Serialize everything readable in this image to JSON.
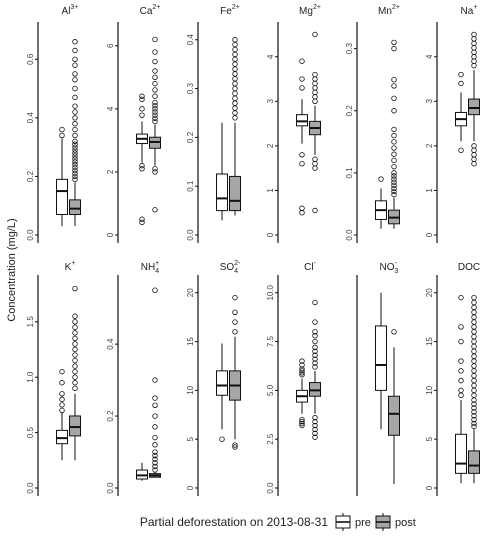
{
  "chart_data": {
    "type": "boxplot",
    "title": "",
    "ylabel": "Concentration (mg/L)",
    "legend": {
      "title": "Partial deforestation on 2013-08-31",
      "position": "bottom",
      "entries": [
        {
          "name": "pre",
          "color": "#ffffff"
        },
        {
          "name": "post",
          "color": "#a6a6a6"
        }
      ]
    },
    "panels": [
      {
        "label": "Al",
        "sup": "3+",
        "ylim": [
          0,
          0.7
        ],
        "ticks": [
          0,
          0.2,
          0.4,
          0.6
        ],
        "pre": {
          "min": 0.03,
          "q1": 0.07,
          "median": 0.15,
          "q3": 0.19,
          "max": 0.33,
          "outliers": [
            0.34,
            0.36
          ]
        },
        "post": {
          "min": 0.03,
          "q1": 0.07,
          "median": 0.09,
          "q3": 0.12,
          "max": 0.18,
          "outliers": [
            0.19,
            0.2,
            0.21,
            0.22,
            0.23,
            0.24,
            0.25,
            0.26,
            0.27,
            0.28,
            0.29,
            0.3,
            0.31,
            0.32,
            0.34,
            0.36,
            0.38,
            0.4,
            0.42,
            0.44,
            0.47,
            0.5,
            0.53,
            0.55,
            0.58,
            0.6,
            0.63,
            0.66
          ]
        }
      },
      {
        "label": "Ca",
        "sup": "2+",
        "ylim": [
          0,
          6.5
        ],
        "ticks": [
          0,
          2,
          4,
          6
        ],
        "pre": {
          "min": 2.3,
          "q1": 2.9,
          "median": 3.05,
          "q3": 3.2,
          "max": 3.6,
          "outliers": [
            0.4,
            0.5,
            2.1,
            2.2,
            3.8,
            4.0,
            4.3,
            4.4
          ]
        },
        "post": {
          "min": 2.2,
          "q1": 2.75,
          "median": 2.95,
          "q3": 3.1,
          "max": 3.5,
          "outliers": [
            0.8,
            2.0,
            2.1,
            3.6,
            3.7,
            3.8,
            3.9,
            4.0,
            4.1,
            4.2,
            4.4,
            4.6,
            4.8,
            5.0,
            5.2,
            5.5,
            5.8,
            6.2
          ]
        }
      },
      {
        "label": "Fe",
        "sup": "2+",
        "ylim": [
          0,
          0.42
        ],
        "ticks": [
          0,
          0.1,
          0.2,
          0.3,
          0.4
        ],
        "pre": {
          "min": 0.03,
          "q1": 0.05,
          "median": 0.075,
          "q3": 0.125,
          "max": 0.23,
          "outliers": []
        },
        "post": {
          "min": 0.04,
          "q1": 0.05,
          "median": 0.07,
          "q3": 0.12,
          "max": 0.23,
          "outliers": [
            0.24,
            0.25,
            0.26,
            0.27,
            0.28,
            0.29,
            0.3,
            0.31,
            0.32,
            0.33,
            0.34,
            0.35,
            0.36,
            0.37,
            0.38,
            0.39,
            0.4
          ]
        }
      },
      {
        "label": "Mg",
        "sup": "2+",
        "ylim": [
          0,
          4.6
        ],
        "ticks": [
          0,
          1,
          2,
          3,
          4
        ],
        "pre": {
          "min": 2.05,
          "q1": 2.45,
          "median": 2.55,
          "q3": 2.7,
          "max": 3.05,
          "outliers": [
            0.5,
            0.6,
            1.6,
            1.8,
            3.3,
            3.5,
            3.9
          ]
        },
        "post": {
          "min": 1.8,
          "q1": 2.25,
          "median": 2.4,
          "q3": 2.55,
          "max": 2.9,
          "outliers": [
            0.55,
            1.5,
            1.6,
            1.7,
            3.0,
            3.1,
            3.2,
            3.3,
            3.4,
            3.5,
            3.6,
            4.5
          ]
        }
      },
      {
        "label": "Mn",
        "sup": "2+",
        "ylim": [
          0,
          0.33
        ],
        "ticks": [
          0,
          0.1,
          0.2,
          0.3
        ],
        "pre": {
          "min": 0.01,
          "q1": 0.025,
          "median": 0.04,
          "q3": 0.055,
          "max": 0.075,
          "outliers": [
            0.09
          ]
        },
        "post": {
          "min": 0.01,
          "q1": 0.018,
          "median": 0.028,
          "q3": 0.04,
          "max": 0.06,
          "outliers": [
            0.065,
            0.07,
            0.075,
            0.08,
            0.085,
            0.09,
            0.095,
            0.1,
            0.11,
            0.12,
            0.13,
            0.14,
            0.15,
            0.16,
            0.17,
            0.2,
            0.22,
            0.24,
            0.25,
            0.3,
            0.31
          ]
        }
      },
      {
        "label": "Na",
        "sup": "+",
        "ylim": [
          0,
          4.6
        ],
        "ticks": [
          0,
          1,
          2,
          3,
          4
        ],
        "pre": {
          "min": 2.1,
          "q1": 2.45,
          "median": 2.6,
          "q3": 2.75,
          "max": 3.2,
          "outliers": [
            1.9,
            3.4,
            3.6
          ]
        },
        "post": {
          "min": 2.1,
          "q1": 2.7,
          "median": 2.85,
          "q3": 3.05,
          "max": 3.7,
          "outliers": [
            1.6,
            1.7,
            1.8,
            1.9,
            2.0,
            3.8,
            3.9,
            4.0,
            4.1,
            4.2,
            4.3,
            4.4,
            4.5
          ]
        }
      },
      {
        "label": "K",
        "sup": "+",
        "ylim": [
          0,
          1.85
        ],
        "ticks": [
          0,
          0.5,
          1.0,
          1.5
        ],
        "pre": {
          "min": 0.25,
          "q1": 0.4,
          "median": 0.45,
          "q3": 0.52,
          "max": 0.68,
          "outliers": [
            0.7,
            0.75,
            0.8,
            0.85,
            0.95,
            1.05
          ]
        },
        "post": {
          "min": 0.25,
          "q1": 0.47,
          "median": 0.55,
          "q3": 0.65,
          "max": 0.85,
          "outliers": [
            0.9,
            0.95,
            1.0,
            1.05,
            1.1,
            1.15,
            1.2,
            1.25,
            1.3,
            1.35,
            1.4,
            1.45,
            1.5,
            1.55,
            1.8
          ]
        }
      },
      {
        "label": "NH",
        "sub": "4",
        "sup": "+",
        "ylim": [
          0,
          0.57
        ],
        "ticks": [
          0,
          0.2,
          0.4
        ],
        "pre": {
          "min": 0.02,
          "q1": 0.025,
          "median": 0.035,
          "q3": 0.05,
          "max": 0.07,
          "outliers": []
        },
        "post": {
          "min": 0.03,
          "q1": 0.03,
          "median": 0.035,
          "q3": 0.04,
          "max": 0.045,
          "outliers": [
            0.05,
            0.06,
            0.07,
            0.08,
            0.09,
            0.1,
            0.12,
            0.14,
            0.17,
            0.2,
            0.23,
            0.25,
            0.3,
            0.55
          ]
        }
      },
      {
        "label": "SO",
        "sub": "4",
        "sup": "2-",
        "ylim": [
          0,
          21
        ],
        "ticks": [
          0,
          5,
          10,
          15,
          20
        ],
        "pre": {
          "min": 6.0,
          "q1": 9.5,
          "median": 10.5,
          "q3": 12.0,
          "max": 14.8,
          "outliers": [
            5.0
          ]
        },
        "post": {
          "min": 5.0,
          "q1": 9.0,
          "median": 10.5,
          "q3": 12.0,
          "max": 15.5,
          "outliers": [
            4.2,
            4.4,
            16.0,
            17.0,
            18.0,
            19.5
          ]
        }
      },
      {
        "label": "Cl",
        "sup": "-",
        "ylim": [
          0,
          10.5
        ],
        "ticks": [
          0,
          2.5,
          5.0,
          7.5,
          10.0
        ],
        "pre": {
          "min": 3.8,
          "q1": 4.4,
          "median": 4.7,
          "q3": 5.0,
          "max": 5.6,
          "outliers": [
            3.2,
            3.3,
            3.4,
            3.5,
            5.8,
            5.9,
            6.0,
            6.1,
            6.3,
            6.5
          ]
        },
        "post": {
          "min": 3.8,
          "q1": 4.7,
          "median": 5.0,
          "q3": 5.4,
          "max": 6.0,
          "outliers": [
            2.6,
            2.8,
            3.0,
            3.2,
            3.4,
            3.6,
            6.2,
            6.4,
            6.6,
            6.8,
            7.0,
            7.2,
            7.5,
            7.8,
            8.0,
            8.5,
            9.5
          ]
        }
      },
      {
        "label": "NO",
        "sub": "3",
        "sup": "-",
        "ylim": [
          0,
          1.05
        ],
        "ticks": [],
        "pre": {
          "min": 0.3,
          "q1": 0.5,
          "median": 0.63,
          "q3": 0.83,
          "max": 1.0,
          "outliers": []
        },
        "post": {
          "min": 0.02,
          "q1": 0.27,
          "median": 0.38,
          "q3": 0.47,
          "max": 0.72,
          "outliers": [
            0.8
          ]
        }
      },
      {
        "label": "DOC",
        "ylim": [
          0,
          21
        ],
        "ticks": [
          0,
          5,
          10,
          15,
          20
        ],
        "pre": {
          "min": 0.5,
          "q1": 1.5,
          "median": 2.5,
          "q3": 5.5,
          "max": 9.0,
          "outliers": [
            9.5,
            10.0,
            11.0,
            12.0,
            13.0,
            15.0,
            16.5,
            19.5
          ]
        },
        "post": {
          "min": 0.5,
          "q1": 1.5,
          "median": 2.3,
          "q3": 3.8,
          "max": 6.0,
          "outliers": [
            6.3,
            6.6,
            7.0,
            7.4,
            7.8,
            8.2,
            8.6,
            9.0,
            9.5,
            10.0,
            10.5,
            11.0,
            11.5,
            12.0,
            12.5,
            13.0,
            13.5,
            14.0,
            14.5,
            15.0,
            15.5,
            16.0,
            16.5,
            17.0,
            17.5,
            18.0,
            18.5,
            19.0,
            19.5
          ]
        }
      }
    ]
  }
}
